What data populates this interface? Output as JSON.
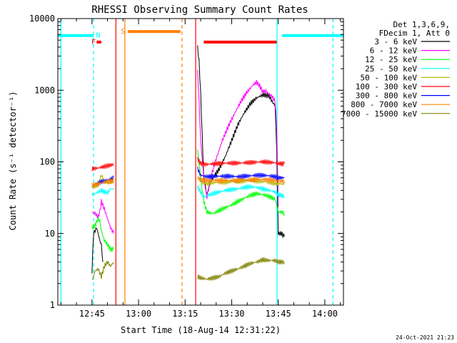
{
  "chart_data": {
    "type": "line",
    "title": "RHESSI Observing Summary Count Rates",
    "xlabel": "Start Time (18-Aug-14 12:31:22)",
    "ylabel": "Count Rate (s⁻¹ detector⁻¹)",
    "yscale": "log",
    "ylim": [
      1,
      10000
    ],
    "xlim_min": [
      34.0,
      126.0
    ],
    "x_ticks": [
      {
        "min": 45,
        "label": "12:45"
      },
      {
        "min": 60,
        "label": "13:00"
      },
      {
        "min": 75,
        "label": "13:15"
      },
      {
        "min": 90,
        "label": "13:30"
      },
      {
        "min": 105,
        "label": "13:45"
      },
      {
        "min": 120,
        "label": "14:00"
      }
    ],
    "y_ticks": [
      {
        "v": 1,
        "label": "1"
      },
      {
        "v": 10,
        "label": "10"
      },
      {
        "v": 100,
        "label": "100"
      },
      {
        "v": 1000,
        "label": "1000"
      },
      {
        "v": 10000,
        "label": "10000"
      }
    ],
    "legend_title_1": "Det 1,3,6,9,",
    "legend_title_2": "FDecim 1, Att 0",
    "legend_position": "top-right",
    "series": [
      {
        "name": "3 - 6 keV",
        "color": "#000000",
        "segments": [
          [
            [
              45,
              3
            ],
            [
              45.5,
              10
            ],
            [
              46,
              11
            ],
            [
              46.5,
              12
            ],
            [
              47,
              10
            ],
            [
              47.5,
              8
            ],
            [
              48,
              7
            ],
            [
              48.5,
              4
            ]
          ],
          [
            [
              79,
              4000
            ],
            [
              79.5,
              2500
            ],
            [
              80,
              900
            ],
            [
              81,
              60
            ],
            [
              82,
              35
            ],
            [
              83,
              50
            ],
            [
              84,
              60
            ],
            [
              86,
              80
            ],
            [
              88,
              120
            ],
            [
              90,
              200
            ],
            [
              92,
              330
            ],
            [
              94,
              480
            ],
            [
              96,
              650
            ],
            [
              98,
              780
            ],
            [
              100,
              860
            ],
            [
              102,
              840
            ],
            [
              103,
              700
            ],
            [
              104,
              600
            ],
            [
              104.5,
              150
            ],
            [
              105,
              10
            ],
            [
              106,
              10
            ],
            [
              107,
              9
            ]
          ]
        ]
      },
      {
        "name": "6 - 12 keV",
        "color": "#ff00ff",
        "segments": [
          [
            [
              45,
              20
            ],
            [
              46,
              19
            ],
            [
              47,
              17
            ],
            [
              47.5,
              20
            ],
            [
              48,
              28
            ],
            [
              49,
              22
            ],
            [
              50,
              16
            ],
            [
              51,
              12
            ],
            [
              52,
              10
            ]
          ],
          [
            [
              79,
              1800
            ],
            [
              79.5,
              700
            ],
            [
              80,
              200
            ],
            [
              81,
              60
            ],
            [
              82,
              32
            ],
            [
              83,
              55
            ],
            [
              85,
              110
            ],
            [
              87,
              200
            ],
            [
              89,
              320
            ],
            [
              91,
              480
            ],
            [
              93,
              700
            ],
            [
              95,
              950
            ],
            [
              97,
              1200
            ],
            [
              98,
              1300
            ],
            [
              99,
              1150
            ],
            [
              100,
              950
            ],
            [
              101,
              980
            ],
            [
              102,
              880
            ],
            [
              103,
              820
            ],
            [
              104,
              700
            ],
            [
              104.5,
              300
            ],
            [
              105,
              24
            ]
          ]
        ]
      },
      {
        "name": "12 - 25 keV",
        "color": "#00ff00",
        "segments": [
          [
            [
              45,
              12
            ],
            [
              46,
              13
            ],
            [
              47,
              16
            ],
            [
              47.5,
              15
            ],
            [
              48,
              11
            ],
            [
              49,
              8
            ],
            [
              50,
              7
            ],
            [
              51,
              6
            ],
            [
              52,
              6
            ]
          ],
          [
            [
              79,
              150
            ],
            [
              80,
              60
            ],
            [
              81,
              28
            ],
            [
              82,
              20
            ],
            [
              84,
              19
            ],
            [
              86,
              21
            ],
            [
              88,
              23
            ],
            [
              90,
              25
            ],
            [
              92,
              28
            ],
            [
              94,
              31
            ],
            [
              96,
              34
            ],
            [
              98,
              36
            ],
            [
              100,
              35
            ],
            [
              102,
              33
            ],
            [
              104,
              30
            ],
            [
              104.5,
              25
            ],
            [
              105,
              20
            ],
            [
              106,
              20
            ],
            [
              107,
              19
            ]
          ]
        ]
      },
      {
        "name": "25 - 50 keV",
        "color": "#00ffff",
        "segments": [
          [
            [
              45,
              35
            ],
            [
              46,
              36
            ],
            [
              47,
              38
            ],
            [
              48,
              40
            ],
            [
              49,
              38
            ],
            [
              50,
              37
            ],
            [
              51,
              42
            ],
            [
              52,
              42
            ]
          ],
          [
            [
              79,
              45
            ],
            [
              80,
              38
            ],
            [
              81,
              32
            ],
            [
              82,
              34
            ],
            [
              84,
              36
            ],
            [
              86,
              38
            ],
            [
              88,
              40
            ],
            [
              90,
              41
            ],
            [
              92,
              42
            ],
            [
              94,
              44
            ],
            [
              96,
              45
            ],
            [
              98,
              44
            ],
            [
              100,
              42
            ],
            [
              102,
              40
            ],
            [
              104,
              38
            ],
            [
              105,
              35
            ],
            [
              106,
              34
            ],
            [
              107,
              33
            ]
          ]
        ]
      },
      {
        "name": "50 - 100 keV",
        "color": "#b8b800",
        "segments": [
          [
            [
              45,
              45
            ],
            [
              46,
              46
            ],
            [
              47,
              48
            ],
            [
              48,
              65
            ],
            [
              49,
              55
            ],
            [
              50,
              52
            ],
            [
              51,
              52
            ],
            [
              52,
              55
            ]
          ],
          [
            [
              79,
              60
            ],
            [
              80,
              52
            ],
            [
              82,
              50
            ],
            [
              84,
              51
            ],
            [
              86,
              52
            ],
            [
              88,
              52
            ],
            [
              90,
              53
            ],
            [
              92,
              53
            ],
            [
              94,
              54
            ],
            [
              96,
              55
            ],
            [
              98,
              54
            ],
            [
              100,
              53
            ],
            [
              102,
              52
            ],
            [
              104,
              50
            ],
            [
              105,
              50
            ],
            [
              106,
              49
            ],
            [
              107,
              49
            ]
          ]
        ]
      },
      {
        "name": "100 - 300 keV",
        "color": "#ff0000",
        "segments": [
          [
            [
              45,
              80
            ],
            [
              46,
              81
            ],
            [
              47,
              82
            ],
            [
              48,
              84
            ],
            [
              49,
              86
            ],
            [
              50,
              88
            ],
            [
              51,
              90
            ],
            [
              52,
              92
            ]
          ],
          [
            [
              79,
              110
            ],
            [
              80,
              95
            ],
            [
              82,
              92
            ],
            [
              84,
              94
            ],
            [
              86,
              95
            ],
            [
              88,
              96
            ],
            [
              90,
              96
            ],
            [
              92,
              96
            ],
            [
              94,
              97
            ],
            [
              96,
              98
            ],
            [
              98,
              99
            ],
            [
              100,
              100
            ],
            [
              102,
              99
            ],
            [
              104,
              97
            ],
            [
              105,
              95
            ],
            [
              106,
              94
            ],
            [
              107,
              94
            ]
          ]
        ]
      },
      {
        "name": "300 - 800 keV",
        "color": "#0000ff",
        "segments": [
          [
            [
              45,
              46
            ],
            [
              46,
              48
            ],
            [
              47,
              50
            ],
            [
              48,
              53
            ],
            [
              49,
              54
            ],
            [
              50,
              56
            ],
            [
              51,
              58
            ],
            [
              52,
              60
            ]
          ],
          [
            [
              79,
              80
            ],
            [
              80,
              65
            ],
            [
              82,
              62
            ],
            [
              84,
              63
            ],
            [
              86,
              63
            ],
            [
              88,
              63
            ],
            [
              90,
              63
            ],
            [
              92,
              62
            ],
            [
              94,
              63
            ],
            [
              96,
              64
            ],
            [
              98,
              65
            ],
            [
              100,
              65
            ],
            [
              102,
              64
            ],
            [
              104,
              62
            ],
            [
              105,
              60
            ],
            [
              106,
              60
            ],
            [
              107,
              60
            ]
          ]
        ]
      },
      {
        "name": "800 - 7000 keV",
        "color": "#ff8000",
        "segments": [
          [
            [
              45,
              47
            ],
            [
              46,
              48
            ],
            [
              47,
              49
            ],
            [
              48,
              51
            ],
            [
              49,
              52
            ],
            [
              50,
              53
            ],
            [
              51,
              54
            ],
            [
              52,
              55
            ]
          ],
          [
            [
              79,
              62
            ],
            [
              80,
              56
            ],
            [
              82,
              55
            ],
            [
              84,
              55
            ],
            [
              86,
              55
            ],
            [
              88,
              55
            ],
            [
              90,
              55
            ],
            [
              92,
              55
            ],
            [
              94,
              56
            ],
            [
              96,
              56
            ],
            [
              98,
              57
            ],
            [
              100,
              57
            ],
            [
              102,
              56
            ],
            [
              104,
              55
            ],
            [
              105,
              54
            ],
            [
              106,
              54
            ],
            [
              107,
              54
            ]
          ]
        ]
      },
      {
        "name": "7000 - 15000 keV",
        "color": "#808000",
        "segments": [
          [
            [
              45,
              2.2
            ],
            [
              46,
              3
            ],
            [
              47,
              3.2
            ],
            [
              48,
              2.5
            ],
            [
              49,
              3.5
            ],
            [
              50,
              4
            ],
            [
              51,
              3.5
            ],
            [
              52,
              4
            ]
          ],
          [
            [
              79,
              2.5
            ],
            [
              80,
              2.4
            ],
            [
              82,
              2.3
            ],
            [
              84,
              2.4
            ],
            [
              86,
              2.5
            ],
            [
              88,
              2.8
            ],
            [
              90,
              3
            ],
            [
              92,
              3.2
            ],
            [
              94,
              3.5
            ],
            [
              96,
              3.8
            ],
            [
              98,
              4
            ],
            [
              100,
              4.3
            ],
            [
              102,
              4.2
            ],
            [
              104,
              4.2
            ],
            [
              105,
              4
            ],
            [
              106,
              4
            ],
            [
              107,
              4
            ]
          ]
        ]
      }
    ],
    "flags": [
      {
        "label": "N",
        "color": "#00ffff",
        "x": [
          34.0,
          45.5,
          106.2,
          126
        ],
        "y": 5800,
        "label_x": 47
      },
      {
        "label": "S",
        "color": "#ff8000",
        "x": [
          56.5,
          73.5
        ],
        "y": 6600,
        "label_x": 55
      },
      {
        "label": "F",
        "color": "#ff0000",
        "x": [
          46.5,
          48.0
        ],
        "y": 4700,
        "label_x": 45.5
      },
      {
        "label": "",
        "color": "#ff0000",
        "x": [
          81.0,
          104.5
        ],
        "y": 4700
      }
    ],
    "vlines": [
      {
        "x": 35.0,
        "color": "#00ffff",
        "dash": false
      },
      {
        "x": 45.5,
        "color": "#00ffff",
        "dash": true
      },
      {
        "x": 52.7,
        "color": "#ff0000",
        "dash": false
      },
      {
        "x": 55.6,
        "color": "#ff8000",
        "dash": false
      },
      {
        "x": 74.0,
        "color": "#ff8000",
        "dash": true
      },
      {
        "x": 78.4,
        "color": "#ff0000",
        "dash": false
      },
      {
        "x": 104.6,
        "color": "#00ffff",
        "dash": false
      },
      {
        "x": 122.6,
        "color": "#00ffff",
        "dash": true
      }
    ],
    "footer_date": "24-Oct-2021 21:23"
  }
}
